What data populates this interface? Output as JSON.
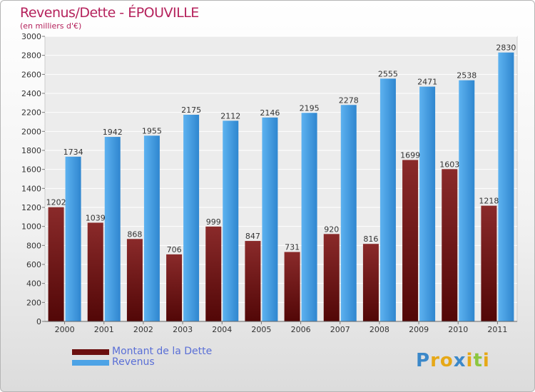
{
  "header": {
    "title": "Revenus/Dette - ÉPOUVILLE",
    "subtitle": "(en milliers d'€)"
  },
  "legend": [
    {
      "label": "Montant de la Dette",
      "color": "#7a1616"
    },
    {
      "label": "Revenus",
      "color": "#4da3e6"
    }
  ],
  "logo": {
    "text": "Proxiti",
    "letters": [
      {
        "ch": "P",
        "color": "#3b88c9"
      },
      {
        "ch": "r",
        "color": "#e6a817"
      },
      {
        "ch": "o",
        "color": "#e6a817"
      },
      {
        "ch": "x",
        "color": "#3b88c9"
      },
      {
        "ch": "i",
        "color": "#e6a817"
      },
      {
        "ch": "t",
        "color": "#8cc63f"
      },
      {
        "ch": "i",
        "color": "#e6a817"
      }
    ]
  },
  "chart_data": {
    "type": "bar",
    "title": "Revenus/Dette - ÉPOUVILLE",
    "subtitle": "(en milliers d'€)",
    "categories": [
      "2000",
      "2001",
      "2002",
      "2003",
      "2004",
      "2005",
      "2006",
      "2007",
      "2008",
      "2009",
      "2010",
      "2011"
    ],
    "series": [
      {
        "name": "Montant de la Dette",
        "color": "#7a1616",
        "values": [
          1202,
          1039,
          868,
          706,
          999,
          847,
          731,
          920,
          816,
          1699,
          1603,
          1218
        ],
        "labels": [
          "1202",
          "1039",
          "868",
          "706",
          "999",
          "847",
          "731",
          "920",
          "816",
          "1699",
          "1603",
          "1218"
        ]
      },
      {
        "name": "Revenus",
        "color": "#4da3e6",
        "values": [
          1734,
          1942,
          1955,
          2175,
          2112,
          2146,
          2195,
          2278,
          2555,
          2471,
          2538,
          2830
        ],
        "labels": [
          "1734",
          "1942",
          "1955",
          "2175",
          "2112",
          "2146",
          "2195",
          "2278",
          "2555",
          "2471",
          "2538",
          "2830"
        ]
      }
    ],
    "ylim": [
      0,
      3000
    ],
    "yticks": [
      0,
      200,
      400,
      600,
      800,
      1000,
      1200,
      1400,
      1600,
      1800,
      2000,
      2200,
      2400,
      2600,
      2800,
      3000
    ],
    "grid": true,
    "legend_position": "bottom-left"
  }
}
